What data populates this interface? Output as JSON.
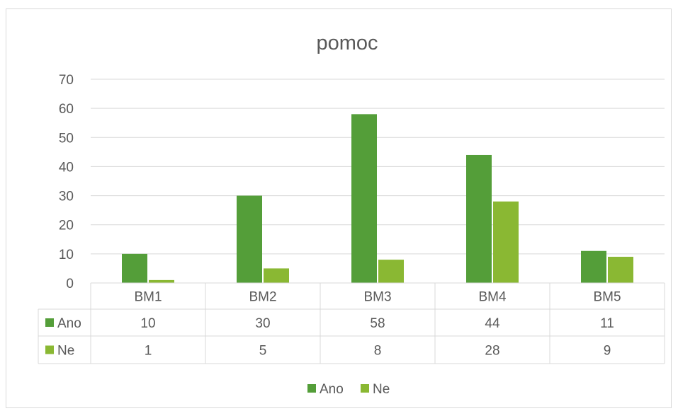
{
  "chart_data": {
    "type": "bar",
    "title": "pomoc",
    "categories": [
      "BM1",
      "BM2",
      "BM3",
      "BM4",
      "BM5"
    ],
    "series": [
      {
        "name": "Ano",
        "color": "#549e39",
        "values": [
          10,
          30,
          58,
          44,
          11
        ]
      },
      {
        "name": "Ne",
        "color": "#8ab833",
        "values": [
          1,
          5,
          8,
          28,
          9
        ]
      }
    ],
    "ylim": [
      0,
      70
    ],
    "yticks": [
      0,
      10,
      20,
      30,
      40,
      50,
      60,
      70
    ],
    "grid": true,
    "data_table": true,
    "legend": "bottom"
  }
}
